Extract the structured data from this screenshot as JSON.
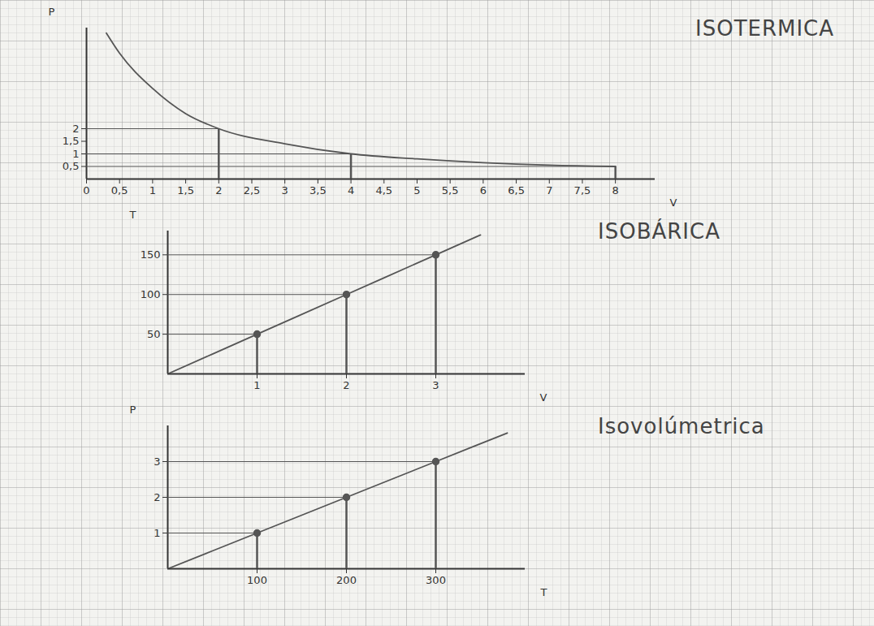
{
  "chart_data": [
    {
      "type": "line",
      "title": "ISOTERMICA",
      "x_label": "V",
      "y_label": "P",
      "x": [
        0.3,
        0.5,
        1,
        1.5,
        2,
        3,
        4,
        5,
        6,
        7,
        8
      ],
      "values": [
        5.8,
        5,
        3.6,
        2.6,
        2,
        1.4,
        1,
        0.8,
        0.65,
        0.55,
        0.5
      ],
      "color": "#555555",
      "marker": "none",
      "line_style": "solid",
      "grid": false,
      "xlim": [
        0,
        8.6
      ],
      "ylim": [
        0,
        6
      ],
      "xticks": [
        0,
        {
          "value": 0.5,
          "label": "0,5"
        },
        1,
        {
          "value": 1.5,
          "label": "1,5"
        },
        2,
        {
          "value": 2.5,
          "label": "2,5"
        },
        3,
        {
          "value": 3.5,
          "label": "3,5"
        },
        4,
        {
          "value": 4.5,
          "label": "4,5"
        },
        5,
        {
          "value": 5.5,
          "label": "5,5"
        },
        6,
        {
          "value": 6.5,
          "label": "6,5"
        },
        7,
        {
          "value": 7.5,
          "label": "7,5"
        },
        8
      ],
      "yticks": [
        {
          "value": 0.5,
          "label": "0,5"
        },
        1,
        {
          "value": 1.5,
          "label": "1,5"
        },
        2
      ]
    },
    {
      "type": "line",
      "title": "ISOBÁRICA",
      "x_label": "V",
      "y_label": "T",
      "x": [
        0,
        1,
        2,
        3,
        3.5
      ],
      "values": [
        0,
        50,
        100,
        150,
        175
      ],
      "color": "#555555",
      "marker": "circle",
      "line_style": "solid",
      "grid": false,
      "xlim": [
        0,
        4
      ],
      "ylim": [
        0,
        180
      ],
      "xticks": [
        1,
        2,
        3
      ],
      "yticks": [
        50,
        100,
        150
      ]
    },
    {
      "type": "line",
      "title": "Isovolúmetrica",
      "x_label": "T",
      "y_label": "P",
      "x": [
        0,
        100,
        200,
        300,
        380
      ],
      "values": [
        0,
        1,
        2,
        3,
        3.8
      ],
      "color": "#555555",
      "marker": "circle",
      "line_style": "solid",
      "grid": false,
      "xlim": [
        0,
        400
      ],
      "ylim": [
        0,
        4
      ],
      "xticks": [
        100,
        200,
        300
      ],
      "yticks": [
        1,
        2,
        3
      ]
    }
  ]
}
